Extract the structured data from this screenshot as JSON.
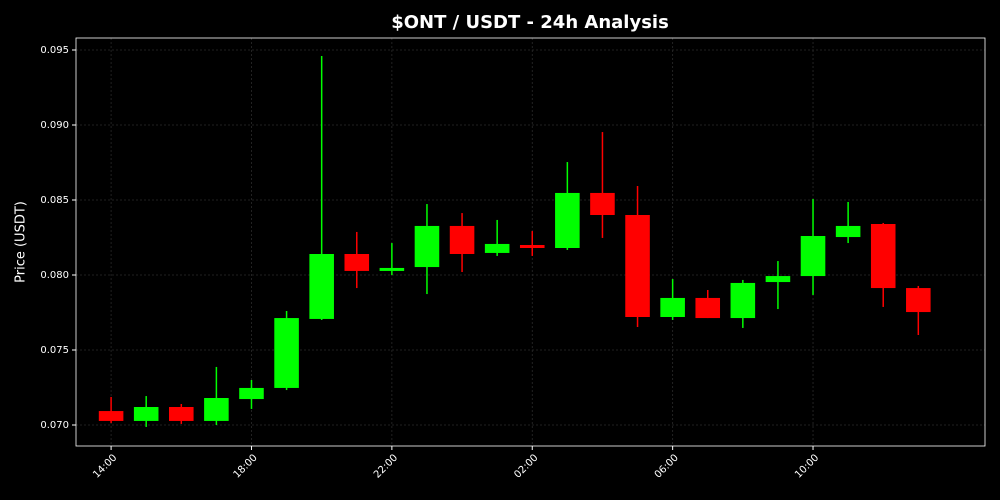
{
  "chart_data": {
    "type": "candlestick",
    "title": "$ONT / USDT - 24h Analysis",
    "ylabel": "Price (USDT)",
    "categories": [
      "14:00",
      null,
      null,
      null,
      "18:00",
      null,
      null,
      null,
      "22:00",
      null,
      null,
      null,
      "02:00",
      null,
      null,
      null,
      "06:00",
      null,
      null,
      null,
      "10:00",
      null,
      null,
      null
    ],
    "open": [
      0.07093,
      0.07027,
      0.0712,
      0.07027,
      0.07173,
      0.07247,
      0.07707,
      0.0814,
      0.08027,
      0.08053,
      0.08327,
      0.08147,
      0.082,
      0.0818,
      0.08547,
      0.084,
      0.0772,
      0.07847,
      0.07713,
      0.07953,
      0.07993,
      0.08253,
      0.0834,
      0.07913
    ],
    "high": [
      0.07187,
      0.07193,
      0.0714,
      0.07387,
      0.073,
      0.0776,
      0.0946,
      0.08287,
      0.08213,
      0.08473,
      0.08413,
      0.08367,
      0.08293,
      0.08753,
      0.08953,
      0.08593,
      0.07973,
      0.079,
      0.07967,
      0.08093,
      0.08507,
      0.08487,
      0.08347,
      0.07927
    ],
    "low": [
      0.07013,
      0.06987,
      0.07007,
      0.07,
      0.07107,
      0.07233,
      0.077,
      0.07913,
      0.08,
      0.07873,
      0.0802,
      0.08127,
      0.08127,
      0.08167,
      0.08247,
      0.07653,
      0.077,
      0.07713,
      0.07647,
      0.07773,
      0.07867,
      0.08213,
      0.07787,
      0.076
    ],
    "close": [
      0.07027,
      0.0712,
      0.07027,
      0.0718,
      0.07247,
      0.07713,
      0.0814,
      0.08027,
      0.08047,
      0.08327,
      0.0814,
      0.08207,
      0.0818,
      0.08547,
      0.084,
      0.0772,
      0.07847,
      0.07713,
      0.07947,
      0.07993,
      0.0826,
      0.08327,
      0.07913,
      0.07753
    ],
    "up_color": "#00ff00",
    "down_color": "#ff0000",
    "ylim": [
      0.0686,
      0.0958
    ],
    "yticks": [
      {
        "value": 0.07,
        "label": "0.070"
      },
      0.075,
      {
        "value": 0.08,
        "label": "0.080"
      },
      0.085,
      {
        "value": 0.09,
        "label": "0.090"
      },
      0.095
    ],
    "grid": true
  }
}
